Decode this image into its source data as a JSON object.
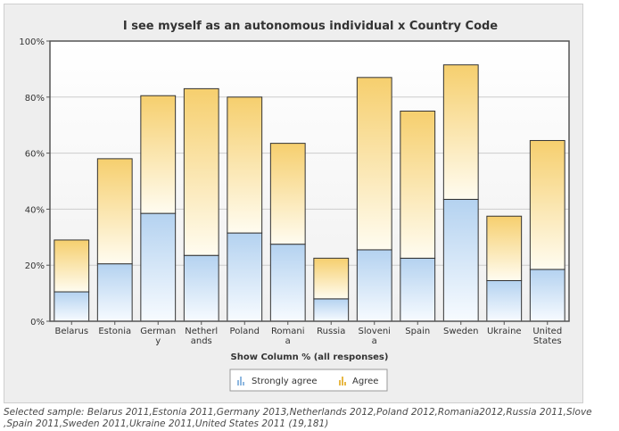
{
  "chart_data": {
    "type": "bar",
    "stacked": true,
    "title": "I see myself as an autonomous individual x Country Code",
    "xlabel": "Show Column % (all responses)",
    "ylabel": "",
    "ylim": [
      0,
      100
    ],
    "yticks": [
      "0%",
      "20%",
      "40%",
      "60%",
      "80%",
      "100%"
    ],
    "grid": true,
    "legend_position": "bottom",
    "categories": [
      [
        "Belarus"
      ],
      [
        "Estonia"
      ],
      [
        "German",
        "y"
      ],
      [
        "Netherl",
        "ands"
      ],
      [
        "Poland"
      ],
      [
        "Romani",
        "a"
      ],
      [
        "Russia"
      ],
      [
        "Sloveni",
        "a"
      ],
      [
        "Spain"
      ],
      [
        "Sweden"
      ],
      [
        "Ukraine"
      ],
      [
        "United",
        "States"
      ]
    ],
    "series": [
      {
        "name": "Strongly agree",
        "color": "#bcd8f2",
        "values": [
          10.5,
          20.5,
          38.5,
          23.5,
          31.5,
          27.5,
          8.0,
          25.5,
          22.5,
          43.5,
          14.5,
          18.5
        ]
      },
      {
        "name": "Agree",
        "color": "#f6d27a",
        "values": [
          18.5,
          37.5,
          42.0,
          59.5,
          48.5,
          36.0,
          14.5,
          61.5,
          52.5,
          48.0,
          23.0,
          46.0
        ]
      }
    ]
  },
  "footer": {
    "line1": "Selected sample: Belarus 2011,Estonia 2011,Germany 2013,Netherlands 2012,Poland 2012,Romania2012,Russia 2011,Slove",
    "line2": ",Spain 2011,Sweden 2011,Ukraine 2011,United States 2011 (19,181)"
  }
}
